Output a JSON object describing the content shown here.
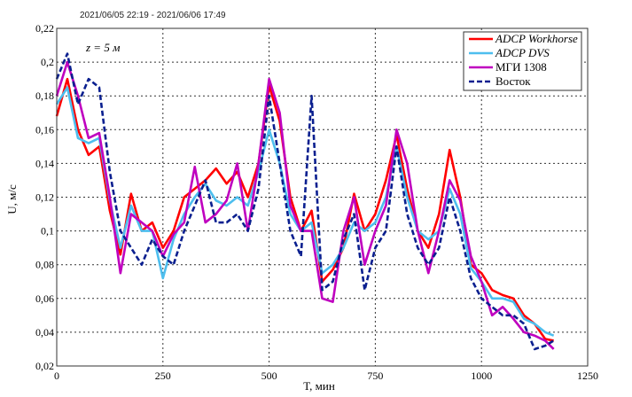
{
  "chart_data": {
    "type": "line",
    "subtitle": "2021/06/05 22:19 - 2021/06/06 17:49",
    "annotation": "z = 5 м",
    "xlabel": "T, мин",
    "ylabel": "U, м/с",
    "xlim": [
      0,
      1250
    ],
    "ylim": [
      0.02,
      0.22
    ],
    "xticks": [
      "0",
      "250",
      "500",
      "750",
      "1000",
      "1250"
    ],
    "yticks": [
      "0,02",
      "0,04",
      "0,06",
      "0,08",
      "0,1",
      "0,12",
      "0,14",
      "0,16",
      "0,18",
      "0,2",
      "0,22"
    ],
    "grid": true,
    "legend_position": "top-right",
    "x": [
      0,
      25,
      50,
      75,
      100,
      125,
      150,
      175,
      200,
      225,
      250,
      275,
      300,
      325,
      350,
      375,
      400,
      425,
      450,
      475,
      500,
      525,
      550,
      575,
      600,
      625,
      650,
      675,
      700,
      725,
      750,
      775,
      800,
      825,
      850,
      875,
      900,
      925,
      950,
      975,
      1000,
      1025,
      1050,
      1075,
      1100,
      1125,
      1150,
      1170
    ],
    "series": [
      {
        "name": "ADCP Workhorse",
        "color": "#ff0000",
        "dashed": false,
        "values": [
          0.168,
          0.19,
          0.16,
          0.145,
          0.15,
          0.112,
          0.086,
          0.122,
          0.1,
          0.105,
          0.09,
          0.1,
          0.12,
          0.125,
          0.13,
          0.137,
          0.128,
          0.135,
          0.12,
          0.14,
          0.186,
          0.165,
          0.12,
          0.1,
          0.112,
          0.07,
          0.077,
          0.09,
          0.122,
          0.1,
          0.11,
          0.13,
          0.157,
          0.125,
          0.1,
          0.09,
          0.11,
          0.148,
          0.12,
          0.08,
          0.075,
          0.065,
          0.062,
          0.06,
          0.05,
          0.045,
          0.036,
          0.035
        ]
      },
      {
        "name": "ADCP DVS",
        "color": "#4dbeee",
        "dashed": false,
        "values": [
          0.175,
          0.185,
          0.155,
          0.152,
          0.155,
          0.118,
          0.09,
          0.115,
          0.1,
          0.1,
          0.072,
          0.095,
          0.11,
          0.12,
          0.128,
          0.118,
          0.115,
          0.12,
          0.115,
          0.135,
          0.16,
          0.14,
          0.11,
          0.1,
          0.105,
          0.075,
          0.08,
          0.09,
          0.105,
          0.1,
          0.105,
          0.12,
          0.15,
          0.12,
          0.1,
          0.095,
          0.1,
          0.125,
          0.11,
          0.078,
          0.07,
          0.06,
          0.06,
          0.058,
          0.048,
          0.045,
          0.04,
          0.038
        ]
      },
      {
        "name": "МГИ 1308",
        "color": "#bf00bf",
        "dashed": false,
        "values": [
          0.18,
          0.2,
          0.18,
          0.155,
          0.158,
          0.12,
          0.075,
          0.11,
          0.105,
          0.1,
          0.085,
          0.098,
          0.105,
          0.138,
          0.105,
          0.11,
          0.118,
          0.14,
          0.1,
          0.14,
          0.19,
          0.17,
          0.115,
          0.1,
          0.1,
          0.06,
          0.058,
          0.1,
          0.12,
          0.08,
          0.1,
          0.115,
          0.16,
          0.14,
          0.1,
          0.075,
          0.1,
          0.13,
          0.118,
          0.085,
          0.07,
          0.05,
          0.055,
          0.048,
          0.04,
          0.038,
          0.035,
          0.03
        ]
      },
      {
        "name": "Восток",
        "color": "#0a1f8f",
        "dashed": true,
        "values": [
          0.19,
          0.205,
          0.175,
          0.19,
          0.185,
          0.135,
          0.1,
          0.09,
          0.08,
          0.095,
          0.085,
          0.08,
          0.1,
          0.115,
          0.13,
          0.105,
          0.105,
          0.11,
          0.1,
          0.125,
          0.18,
          0.14,
          0.1,
          0.085,
          0.18,
          0.065,
          0.07,
          0.095,
          0.11,
          0.065,
          0.09,
          0.1,
          0.15,
          0.11,
          0.09,
          0.08,
          0.09,
          0.12,
          0.1,
          0.072,
          0.06,
          0.055,
          0.05,
          0.05,
          0.045,
          0.03,
          0.032,
          0.035
        ]
      }
    ]
  }
}
